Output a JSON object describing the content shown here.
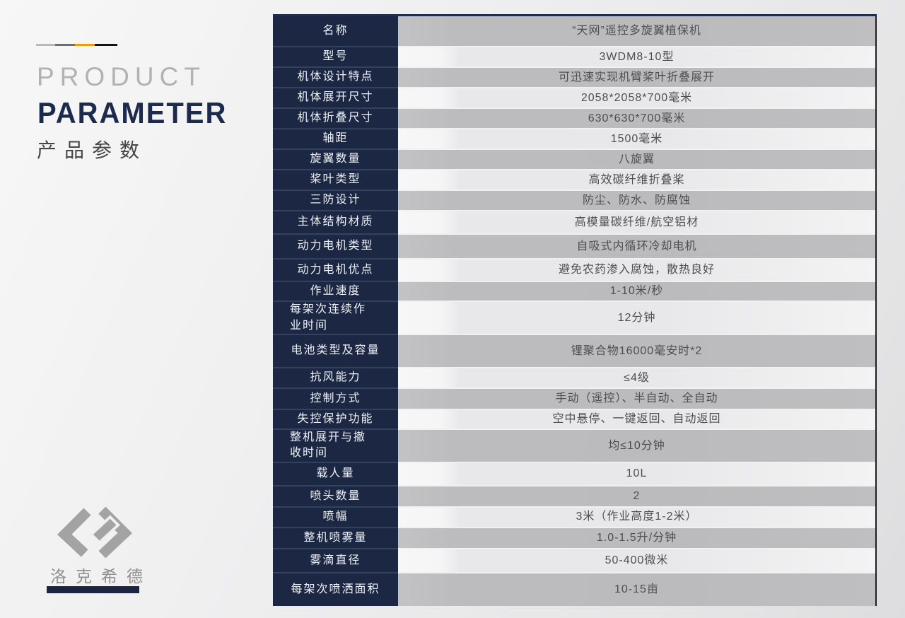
{
  "header": {
    "title_line1": "PRODUCT",
    "title_line2": "PARAMETER",
    "title_cn": "产品参数"
  },
  "deco_line": {
    "segment_colors": [
      "#b9b9b9",
      "#6e6e6e",
      "#f29b0a",
      "#141414"
    ]
  },
  "logo": {
    "company_cn": "洛克希德",
    "mark_icon": "lockheed-ribbon-mark-icon",
    "mark_color": "#a3a3a3",
    "underline_color": "#1b2440"
  },
  "colors": {
    "label_bg": "#1c2843",
    "row_dark": "#bcbcbe",
    "row_light": "#ececee",
    "accent_navy": "#1c2b4d",
    "accent_orange": "#f29b0a"
  },
  "table": {
    "rows": [
      {
        "label": "名称",
        "value": "“天网”遥控多旋翼植保机"
      },
      {
        "label": "型号",
        "value": "3WDM8-10型"
      },
      {
        "label": "机体设计特点",
        "value": "可迅速实现机臂桨叶折叠展开"
      },
      {
        "label": "机体展开尺寸",
        "value": "2058*2058*700毫米"
      },
      {
        "label": "机体折叠尺寸",
        "value": "630*630*700毫米"
      },
      {
        "label": "轴距",
        "value": "1500毫米"
      },
      {
        "label": "旋翼数量",
        "value": "八旋翼"
      },
      {
        "label": "桨叶类型",
        "value": "高效碳纤维折叠桨"
      },
      {
        "label": "三防设计",
        "value": "防尘、防水、防腐蚀"
      },
      {
        "label": "主体结构材质",
        "value": "高模量碳纤维/航空铝材"
      },
      {
        "label": "动力电机类型",
        "value": "自吸式内循环冷却电机"
      },
      {
        "label": "动力电机优点",
        "value": "避免农药渗入腐蚀，散热良好"
      },
      {
        "label": "作业速度",
        "value": "1-10米/秒"
      },
      {
        "label": "每架次连续作\n业时间",
        "value": "12分钟"
      },
      {
        "label": "电池类型及容量",
        "value": "锂聚合物16000毫安时*2"
      },
      {
        "label": "抗风能力",
        "value": "≤4级"
      },
      {
        "label": "控制方式",
        "value": "手动（遥控）、半自动、全自动"
      },
      {
        "label": "失控保护功能",
        "value": "空中悬停、一键返回、自动返回"
      },
      {
        "label": "整机展开与撤\n收时间",
        "value": "均≤10分钟"
      },
      {
        "label": "载人量",
        "value": "10L"
      },
      {
        "label": "喷头数量",
        "value": "2"
      },
      {
        "label": "喷幅",
        "value": "3米（作业高度1-2米）"
      },
      {
        "label": "整机喷雾量",
        "value": "1.0-1.5升/分钟"
      },
      {
        "label": "雾滴直径",
        "value": "50-400微米"
      },
      {
        "label": "每架次喷洒面积",
        "value": "10-15亩"
      }
    ]
  }
}
